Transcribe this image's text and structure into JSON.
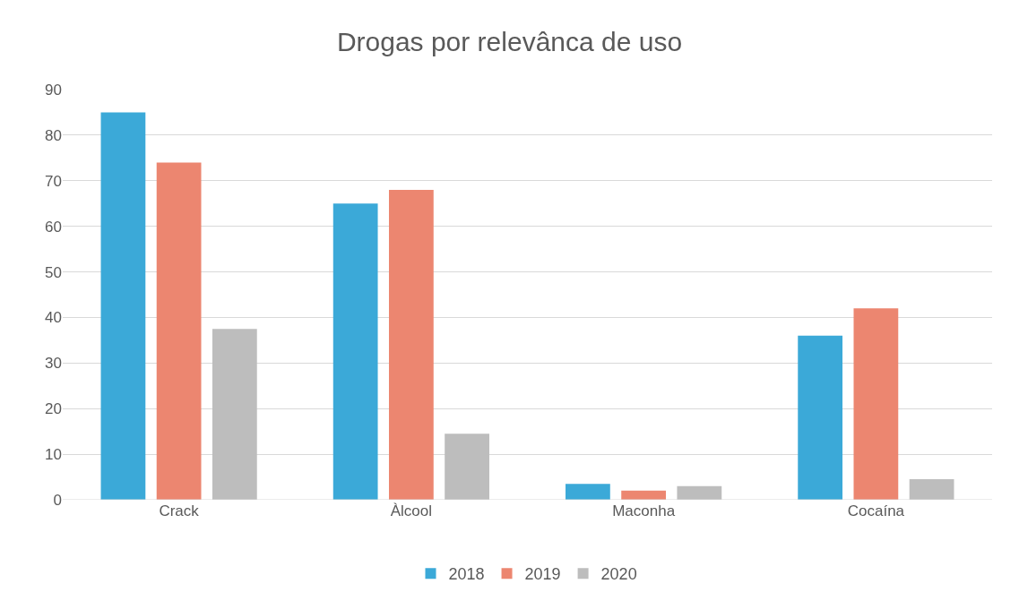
{
  "chart_data": {
    "type": "bar",
    "title": "Drogas por relevânca de uso",
    "categories": [
      "Crack",
      "Àlcool",
      "Maconha",
      "Cocaína"
    ],
    "series": [
      {
        "name": "2018",
        "color": "#3ba9d8",
        "values": [
          85,
          65,
          3.5,
          36
        ]
      },
      {
        "name": "2019",
        "color": "#ec8670",
        "values": [
          74,
          68,
          2,
          42
        ]
      },
      {
        "name": "2020",
        "color": "#bdbdbd",
        "values": [
          37.5,
          14.5,
          3,
          4.5
        ]
      }
    ],
    "ylim": [
      0,
      90
    ],
    "yticks": [
      0,
      10,
      20,
      30,
      40,
      50,
      60,
      70,
      80,
      90
    ],
    "grid": "y",
    "legend": "bottom"
  }
}
